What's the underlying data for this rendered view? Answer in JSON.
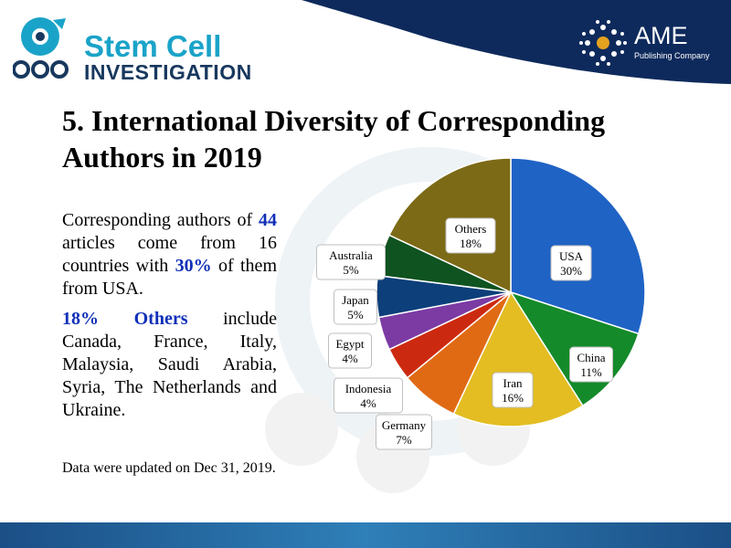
{
  "header": {
    "journal_line1": "Stem Cell",
    "journal_line2": "INVESTIGATION",
    "publisher_name": "AME",
    "publisher_sub": "Publishing Company"
  },
  "slide": {
    "title": "5. International Diversity of Corresponding Authors in 2019",
    "desc_p1_a": "Corresponding authors of ",
    "desc_p1_articles": "44",
    "desc_p1_b": " articles come from 16 countries with ",
    "desc_p1_pct": "30%",
    "desc_p1_c": " of them from USA.",
    "desc_p2_hl": "18% Others",
    "desc_p2_rest": " include Canada, France, Italy, Malaysia, Saudi Arabia, Syria, The Netherlands and Ukraine.",
    "footnote": "Data were updated on Dec 31, 2019."
  },
  "chart_data": {
    "type": "pie",
    "title": "",
    "slices": [
      {
        "label": "USA",
        "value": 30,
        "pct_label": "30%",
        "color": "#1f63c5"
      },
      {
        "label": "China",
        "value": 11,
        "pct_label": "11%",
        "color": "#148a2a"
      },
      {
        "label": "Iran",
        "value": 16,
        "pct_label": "16%",
        "color": "#e3bd22"
      },
      {
        "label": "Germany",
        "value": 7,
        "pct_label": "7%",
        "color": "#e06a14"
      },
      {
        "label": "Indonesia",
        "value": 4,
        "pct_label": "4%",
        "color": "#cc2a10"
      },
      {
        "label": "Egypt",
        "value": 4,
        "pct_label": "4%",
        "color": "#7b3ba3"
      },
      {
        "label": "Japan",
        "value": 5,
        "pct_label": "5%",
        "color": "#0d3f7a"
      },
      {
        "label": "Australia",
        "value": 5,
        "pct_label": "5%",
        "color": "#0f5320"
      },
      {
        "label": "Others",
        "value": 18,
        "pct_label": "18%",
        "color": "#7c6a16"
      }
    ],
    "start_angle_deg": 0,
    "direction": "clockwise"
  },
  "colors": {
    "header_navy": "#0e2a5c",
    "brand_cyan": "#1aa3c8",
    "brand_navy": "#18385e",
    "highlight_blue": "#1030b8"
  }
}
